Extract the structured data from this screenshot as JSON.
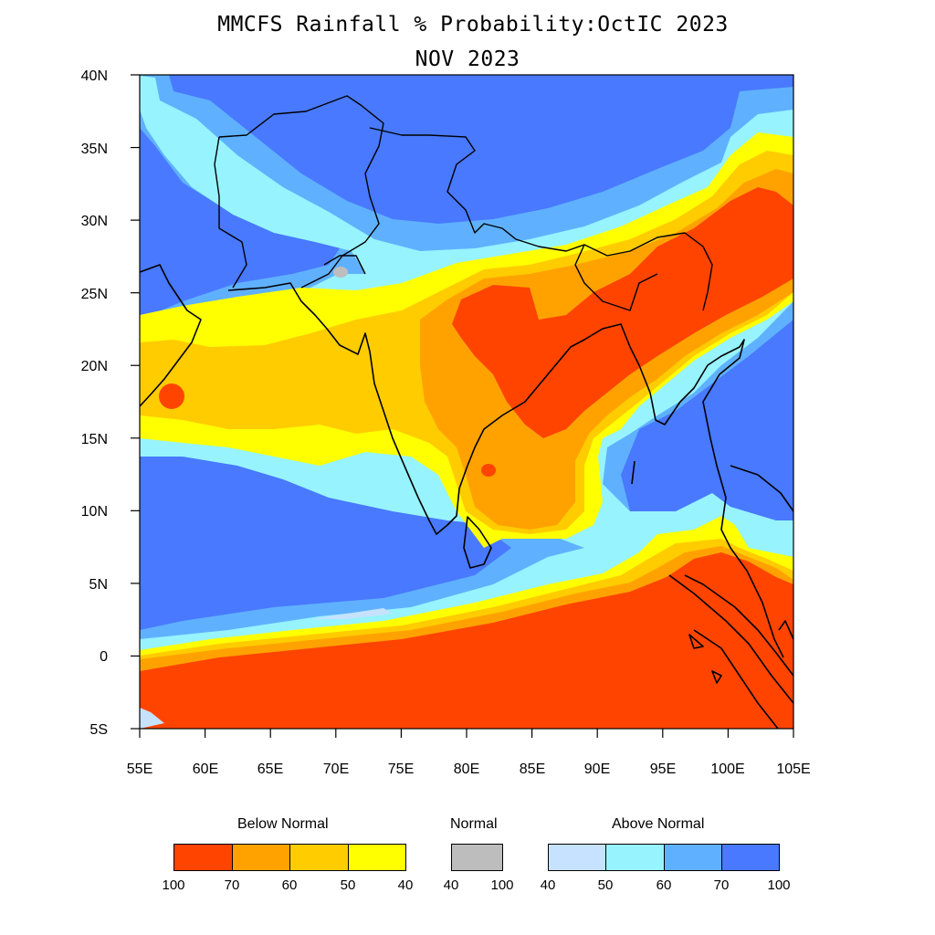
{
  "title": "MMCFS Rainfall % Probability:OctIC 2023",
  "subtitle": "NOV 2023",
  "axes": {
    "lat_ticks": [
      "40N",
      "35N",
      "30N",
      "25N",
      "20N",
      "15N",
      "10N",
      "5N",
      "0",
      "5S"
    ],
    "lon_ticks": [
      "55E",
      "60E",
      "65E",
      "70E",
      "75E",
      "80E",
      "85E",
      "90E",
      "95E",
      "100E",
      "105E"
    ],
    "lat_range": [
      -5,
      40
    ],
    "lon_range": [
      55,
      105
    ]
  },
  "colors": {
    "below_100_70": "#ff4400",
    "below_70_60": "#ffa200",
    "below_60_50": "#ffcc00",
    "below_50_40": "#ffff00",
    "normal": "#bdbdbd",
    "above_40_50": "#c6e2ff",
    "above_50_60": "#97f3fd",
    "above_60_70": "#5fb1ff",
    "above_70_100": "#4879ff",
    "border": "#000000"
  },
  "legend": {
    "below": {
      "title": "Below Normal",
      "colors": [
        "#ff4400",
        "#ffa200",
        "#ffcc00",
        "#ffff00"
      ],
      "labels": [
        "100",
        "70",
        "60",
        "50",
        "40"
      ]
    },
    "normal": {
      "title": "Normal",
      "colors": [
        "#bdbdbd"
      ],
      "labels": [
        "40",
        "100"
      ]
    },
    "above": {
      "title": "Above Normal",
      "colors": [
        "#c6e2ff",
        "#97f3fd",
        "#5fb1ff",
        "#4879ff"
      ],
      "labels": [
        "40",
        "50",
        "60",
        "70",
        "100"
      ]
    }
  }
}
